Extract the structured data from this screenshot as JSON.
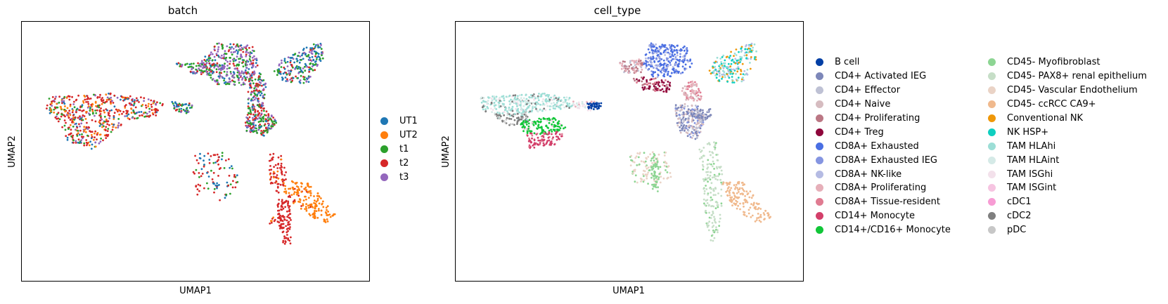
{
  "chart_data": [
    {
      "type": "scatter",
      "title": "batch",
      "xlabel": "UMAP1",
      "ylabel": "UMAP2",
      "grid": false,
      "legend_placement": "right, outside plot",
      "legend": [
        {
          "label": "UT1",
          "color": "#1f77b4"
        },
        {
          "label": "UT2",
          "color": "#ff7f0e"
        },
        {
          "label": "t1",
          "color": "#2ca02c"
        },
        {
          "label": "t2",
          "color": "#d62728"
        },
        {
          "label": "t3",
          "color": "#9467bd"
        }
      ],
      "regions": [
        {
          "shape": "poly",
          "pts": [
            [
              24.7,
              38.5
            ],
            [
              29.2,
              38.1
            ],
            [
              30.1,
              34.8
            ],
            [
              28.7,
              31.6
            ],
            [
              24.7,
              31.8
            ],
            [
              22.2,
              34.6
            ]
          ],
          "n": 320,
          "mix": {
            "t3": 0.45,
            "t1": 0.25,
            "t2": 0.15,
            "UT1": 0.15
          }
        },
        {
          "shape": "poly",
          "pts": [
            [
              19.5,
              35.2
            ],
            [
              24.7,
              35.4
            ],
            [
              24.3,
              33.1
            ],
            [
              21.3,
              33.5
            ]
          ],
          "n": 90,
          "mix": {
            "t1": 0.4,
            "t3": 0.3,
            "t2": 0.15,
            "UT1": 0.15
          }
        },
        {
          "shape": "poly",
          "pts": [
            [
              33.0,
              36.0
            ],
            [
              37.8,
              38.7
            ],
            [
              38.3,
              36.2
            ],
            [
              36.3,
              31.9
            ],
            [
              33.4,
              32.1
            ],
            [
              31.9,
              33.7
            ]
          ],
          "n": 210,
          "mix": {
            "UT1": 0.45,
            "t1": 0.3,
            "t3": 0.15,
            "t2": 0.1
          }
        },
        {
          "shape": "poly",
          "pts": [
            [
              28.7,
              32.5
            ],
            [
              30.1,
              33.8
            ],
            [
              31.0,
              31.9
            ],
            [
              30.6,
              28.0
            ],
            [
              28.7,
              28.5
            ]
          ],
          "n": 110,
          "mix": {
            "t2": 0.3,
            "t3": 0.25,
            "t1": 0.25,
            "UT1": 0.2
          }
        },
        {
          "shape": "poly",
          "pts": [
            [
              28.7,
              28.3
            ],
            [
              30.5,
              28.5
            ],
            [
              32.4,
              25.7
            ],
            [
              30.8,
              23.4
            ],
            [
              28.2,
              24.3
            ]
          ],
          "n": 200,
          "mix": {
            "t1": 0.35,
            "t2": 0.35,
            "UT1": 0.15,
            "t3": 0.15
          }
        },
        {
          "shape": "poly",
          "pts": [
            [
              3.3,
              29.7
            ],
            [
              11.2,
              30.3
            ],
            [
              15.6,
              29.7
            ],
            [
              18.2,
              28.5
            ],
            [
              17.9,
              26.8
            ],
            [
              13.6,
              26.0
            ],
            [
              11.7,
              24.2
            ],
            [
              9.1,
              21.2
            ],
            [
              5.9,
              22.6
            ],
            [
              4.5,
              25.8
            ],
            [
              3.1,
              27.4
            ]
          ],
          "n": 520,
          "mix": {
            "t2": 0.45,
            "UT2": 0.2,
            "t1": 0.15,
            "UT1": 0.1,
            "t3": 0.1
          }
        },
        {
          "shape": "poly",
          "pts": [
            [
              19.0,
              29.0
            ],
            [
              21.8,
              28.6
            ],
            [
              21.3,
              27.0
            ],
            [
              19.4,
              27.4
            ]
          ],
          "n": 50,
          "mix": {
            "UT1": 0.4,
            "t1": 0.3,
            "t2": 0.2,
            "t3": 0.1
          }
        },
        {
          "shape": "poly",
          "pts": [
            [
              22.0,
              20.6
            ],
            [
              26.6,
              21.1
            ],
            [
              27.5,
              16.1
            ],
            [
              26.6,
              13.4
            ],
            [
              24.2,
              12.8
            ],
            [
              22.3,
              13.9
            ],
            [
              21.7,
              16.7
            ]
          ],
          "n": 95,
          "mix": {
            "t2": 0.45,
            "UT1": 0.35,
            "t1": 0.2
          }
        },
        {
          "shape": "poly",
          "pts": [
            [
              31.4,
              20.6
            ],
            [
              32.8,
              20.6
            ],
            [
              33.7,
              16.7
            ],
            [
              32.4,
              13.9
            ],
            [
              31.4,
              16.1
            ]
          ],
          "n": 70,
          "mix": {
            "t2": 0.8,
            "UT2": 0.2
          }
        },
        {
          "shape": "poly",
          "pts": [
            [
              32.4,
              13.4
            ],
            [
              34.1,
              13.9
            ],
            [
              34.1,
              6.0
            ],
            [
              33.2,
              5.8
            ],
            [
              32.4,
              9.1
            ]
          ],
          "n": 110,
          "mix": {
            "t2": 1.0
          }
        },
        {
          "shape": "poly",
          "pts": [
            [
              33.0,
              16.1
            ],
            [
              36.3,
              16.1
            ],
            [
              40.0,
              10.3
            ],
            [
              38.1,
              9.2
            ],
            [
              34.5,
              12.4
            ],
            [
              33.2,
              14.2
            ]
          ],
          "n": 160,
          "mix": {
            "UT2": 0.9,
            "t2": 0.1
          }
        },
        {
          "shape": "poly",
          "pts": [
            [
              31.4,
              9.7
            ],
            [
              32.1,
              10.5
            ],
            [
              32.2,
              9.2
            ],
            [
              31.4,
              9.2
            ]
          ],
          "n": 8,
          "mix": {
            "t2": 0.7,
            "UT2": 0.3
          }
        }
      ]
    },
    {
      "type": "scatter",
      "title": "cell_type",
      "xlabel": "UMAP1",
      "ylabel": "UMAP2",
      "grid": false,
      "legend_placement": "right, outside plot, two columns",
      "legend": [
        {
          "label": "B cell",
          "color": "#023fa5"
        },
        {
          "label": "CD4+ Activated IEG",
          "color": "#7d87b9"
        },
        {
          "label": "CD4+ Effector",
          "color": "#bec1d4"
        },
        {
          "label": "CD4+ Naive",
          "color": "#d6bcc0"
        },
        {
          "label": "CD4+ Proliferating",
          "color": "#bb7784"
        },
        {
          "label": "CD4+ Treg",
          "color": "#8e063b"
        },
        {
          "label": "CD8A+ Exhausted",
          "color": "#4a6fe3"
        },
        {
          "label": "CD8A+ Exhausted IEG",
          "color": "#8595e1"
        },
        {
          "label": "CD8A+ NK-like",
          "color": "#b5bbe3"
        },
        {
          "label": "CD8A+ Proliferating",
          "color": "#e6afb9"
        },
        {
          "label": "CD8A+ Tissue-resident",
          "color": "#e07b91"
        },
        {
          "label": "CD14+ Monocyte",
          "color": "#d33f6a"
        },
        {
          "label": "CD14+/CD16+ Monocyte",
          "color": "#11c638"
        },
        {
          "label": "CD45- Myofibroblast",
          "color": "#8dd593"
        },
        {
          "label": "CD45- PAX8+ renal epithelium",
          "color": "#c6dec7"
        },
        {
          "label": "CD45- Vascular Endothelium",
          "color": "#ead3c6"
        },
        {
          "label": "CD45- ccRCC CA9+",
          "color": "#f0b98d"
        },
        {
          "label": "Conventional NK",
          "color": "#ef9708"
        },
        {
          "label": "NK HSP+",
          "color": "#0fcfc0"
        },
        {
          "label": "TAM HLAhi",
          "color": "#9cded6"
        },
        {
          "label": "TAM HLAint",
          "color": "#d5eae7"
        },
        {
          "label": "TAM ISGhi",
          "color": "#f3e1eb"
        },
        {
          "label": "TAM ISGint",
          "color": "#f6c4e1"
        },
        {
          "label": "cDC1",
          "color": "#f79cd4"
        },
        {
          "label": "cDC2",
          "color": "#7f7f7f"
        },
        {
          "label": "pDC",
          "color": "#c7c7c7"
        }
      ],
      "regions": [
        {
          "shape": "poly",
          "pts": [
            [
              24.7,
              38.5
            ],
            [
              29.2,
              38.1
            ],
            [
              30.1,
              34.8
            ],
            [
              28.2,
              33.1
            ],
            [
              25.1,
              32.8
            ],
            [
              23.7,
              35.2
            ]
          ],
          "n": 300,
          "mix": {
            "CD8A+ Exhausted": 0.6,
            "CD8A+ Exhausted IEG": 0.25,
            "CD8A+ NK-like": 0.15
          }
        },
        {
          "shape": "poly",
          "pts": [
            [
              20.8,
              35.4
            ],
            [
              23.9,
              35.9
            ],
            [
              23.6,
              33.7
            ],
            [
              21.1,
              33.5
            ]
          ],
          "n": 75,
          "mix": {
            "CD8A+ Proliferating": 0.45,
            "CD4+ Proliferating": 0.3,
            "CD4+ Effector": 0.25
          }
        },
        {
          "shape": "poly",
          "pts": [
            [
              22.2,
              33.1
            ],
            [
              27.5,
              32.5
            ],
            [
              27.0,
              30.5
            ],
            [
              23.7,
              30.9
            ]
          ],
          "n": 90,
          "mix": {
            "CD4+ Treg": 0.55,
            "CD8A+ Tissue-resident": 0.2,
            "CD4+ Proliferating": 0.25
          }
        },
        {
          "shape": "poly",
          "pts": [
            [
              28.7,
              31.9
            ],
            [
              30.6,
              32.5
            ],
            [
              31.5,
              29.2
            ],
            [
              28.7,
              29.0
            ]
          ],
          "n": 80,
          "mix": {
            "CD8A+ Proliferating": 0.4,
            "CD8A+ Tissue-resident": 0.3,
            "CD4+ Naive": 0.3
          }
        },
        {
          "shape": "poly",
          "pts": [
            [
              33.0,
              36.0
            ],
            [
              37.8,
              38.7
            ],
            [
              38.3,
              36.2
            ],
            [
              36.3,
              31.9
            ],
            [
              33.4,
              32.1
            ],
            [
              31.9,
              33.7
            ]
          ],
          "n": 200,
          "mix": {
            "NK HSP+": 0.35,
            "TAM HLAhi": 0.25,
            "Conventional NK": 0.25,
            "CD8A+ NK-like": 0.15
          }
        },
        {
          "shape": "poly",
          "pts": [
            [
              27.8,
              28.6
            ],
            [
              30.6,
              28.6
            ],
            [
              31.9,
              25.8
            ],
            [
              30.5,
              22.8
            ],
            [
              28.2,
              24.1
            ]
          ],
          "n": 210,
          "mix": {
            "CD4+ Naive": 0.35,
            "CD4+ Activated IEG": 0.3,
            "CD4+ Effector": 0.2,
            "CD8A+ Exhausted IEG": 0.15
          }
        },
        {
          "shape": "poly",
          "pts": [
            [
              29.2,
              27.6
            ],
            [
              32.4,
              27.8
            ],
            [
              32.4,
              26.0
            ],
            [
              29.4,
              26.2
            ]
          ],
          "n": 60,
          "mix": {
            "CD4+ Activated IEG": 0.7,
            "CD4+ Effector": 0.3
          }
        },
        {
          "shape": "poly",
          "pts": [
            [
              3.2,
              29.7
            ],
            [
              11.2,
              30.3
            ],
            [
              14.6,
              29.6
            ],
            [
              14.9,
              28.0
            ],
            [
              10.7,
              27.4
            ],
            [
              6.8,
              26.6
            ],
            [
              3.6,
              27.4
            ]
          ],
          "n": 330,
          "mix": {
            "TAM HLAhi": 0.55,
            "TAM HLAint": 0.25,
            "TAM ISGhi": 0.1,
            "cDC2": 0.1
          }
        },
        {
          "shape": "poly",
          "pts": [
            [
              14.9,
              29.3
            ],
            [
              18.1,
              29.0
            ],
            [
              17.8,
              27.4
            ],
            [
              14.9,
              27.8
            ]
          ],
          "n": 45,
          "mix": {
            "TAM ISGhi": 0.5,
            "TAM HLAint": 0.3,
            "CD8A+ Proliferating": 0.2
          }
        },
        {
          "shape": "poly",
          "pts": [
            [
              4.5,
              27.0
            ],
            [
              9.1,
              27.4
            ],
            [
              9.3,
              25.4
            ],
            [
              6.8,
              25.0
            ]
          ],
          "n": 70,
          "mix": {
            "cDC2": 0.6,
            "pDC": 0.25,
            "TAM HLAhi": 0.15
          }
        },
        {
          "shape": "poly",
          "pts": [
            [
              8.2,
              25.8
            ],
            [
              12.6,
              26.6
            ],
            [
              14.2,
              24.8
            ],
            [
              11.7,
              23.6
            ],
            [
              8.7,
              23.8
            ]
          ],
          "n": 130,
          "mix": {
            "CD14+/CD16+ Monocyte": 0.85,
            "TAM ISGint": 0.15
          }
        },
        {
          "shape": "poly",
          "pts": [
            [
              8.9,
              23.8
            ],
            [
              14.2,
              24.3
            ],
            [
              12.6,
              22.0
            ],
            [
              9.4,
              21.4
            ]
          ],
          "n": 90,
          "mix": {
            "CD14+ Monocyte": 0.75,
            "CD8A+ Tissue-resident": 0.25
          }
        },
        {
          "shape": "poly",
          "pts": [
            [
              16.7,
              28.7
            ],
            [
              18.5,
              29.0
            ],
            [
              18.5,
              27.9
            ],
            [
              16.9,
              27.6
            ]
          ],
          "n": 35,
          "mix": {
            "B cell": 1.0
          }
        },
        {
          "shape": "poly",
          "pts": [
            [
              22.0,
              20.6
            ],
            [
              26.6,
              21.1
            ],
            [
              27.5,
              16.4
            ],
            [
              25.4,
              15.3
            ],
            [
              22.6,
              15.7
            ]
          ],
          "n": 110,
          "mix": {
            "CD45- Vascular Endothelium": 0.7,
            "CD45- Myofibroblast": 0.3
          }
        },
        {
          "shape": "poly",
          "pts": [
            [
              24.7,
              20.0
            ],
            [
              25.9,
              20.0
            ],
            [
              25.9,
              14.4
            ],
            [
              24.9,
              14.6
            ]
          ],
          "n": 45,
          "mix": {
            "CD45- Myofibroblast": 1.0
          }
        },
        {
          "shape": "poly",
          "pts": [
            [
              30.5,
              22.4
            ],
            [
              33.2,
              22.4
            ],
            [
              34.0,
              16.1
            ],
            [
              33.4,
              8.1
            ],
            [
              32.3,
              5.8
            ],
            [
              31.6,
              10.8
            ],
            [
              31.3,
              16.1
            ]
          ],
          "n": 170,
          "mix": {
            "CD45- PAX8+ renal epithelium": 0.8,
            "CD45- Myofibroblast": 0.2
          }
        },
        {
          "shape": "poly",
          "pts": [
            [
              33.7,
              16.1
            ],
            [
              36.3,
              16.1
            ],
            [
              40.0,
              10.3
            ],
            [
              38.1,
              9.2
            ],
            [
              34.7,
              12.4
            ]
          ],
          "n": 150,
          "mix": {
            "CD45- ccRCC CA9+": 1.0
          }
        }
      ]
    }
  ]
}
